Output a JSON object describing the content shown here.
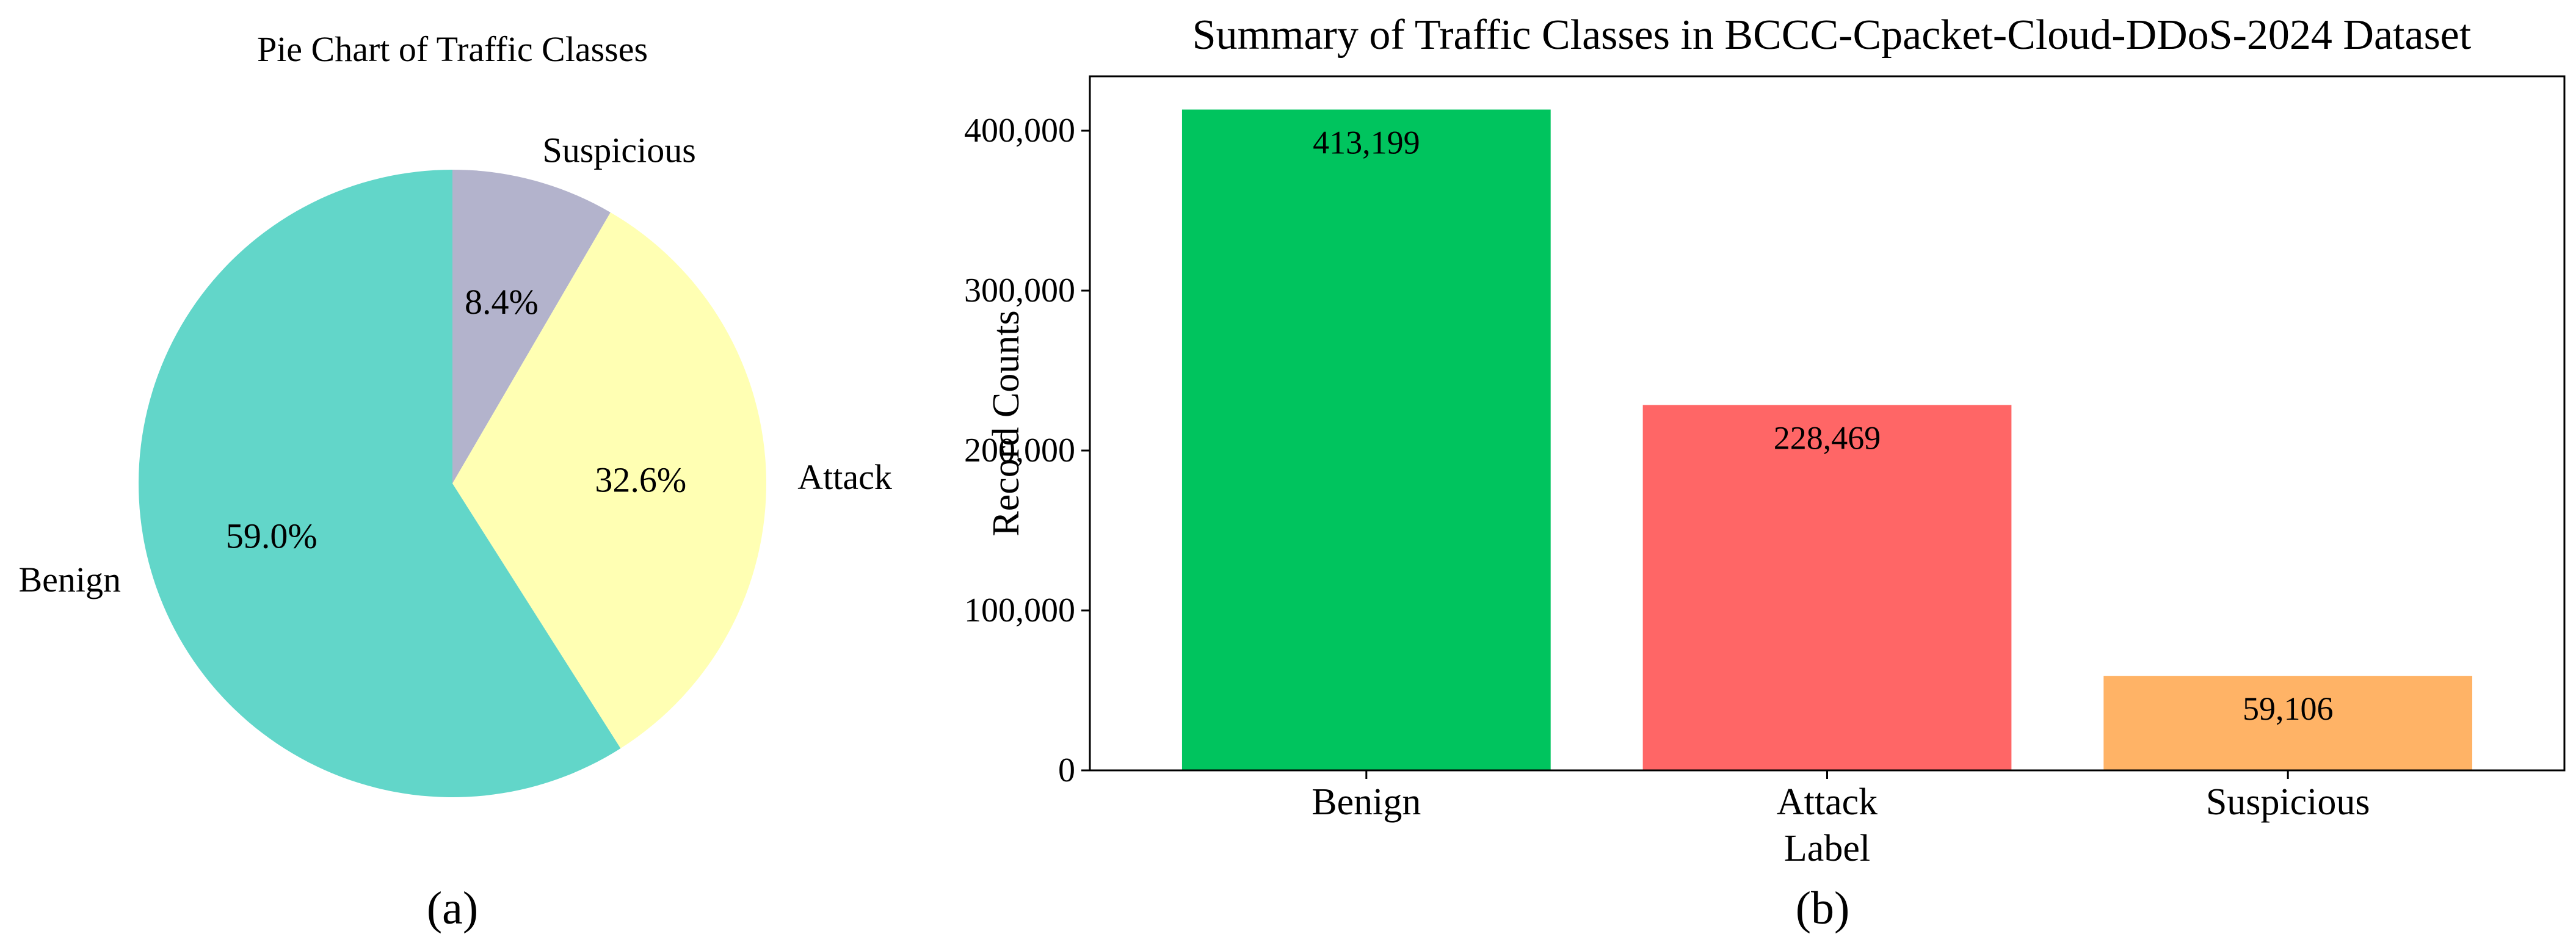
{
  "chart_data": [
    {
      "type": "pie",
      "title": "Pie Chart of Traffic Classes",
      "panel_label": "(a)",
      "start_angle_deg": 90,
      "direction": "clockwise",
      "slices": [
        {
          "label": "Suspicious",
          "value": 8.4,
          "pct_text": "8.4%",
          "color": "#b3b3cc"
        },
        {
          "label": "Attack",
          "value": 32.6,
          "pct_text": "32.6%",
          "color": "#ffffb3"
        },
        {
          "label": "Benign",
          "value": 59.0,
          "pct_text": "59.0%",
          "color": "#62d6c9"
        }
      ]
    },
    {
      "type": "bar",
      "title": "Summary of Traffic Classes in BCCC-Cpacket-Cloud-DDoS-2024 Dataset",
      "panel_label": "(b)",
      "xlabel": "Label",
      "ylabel": "Record Counts",
      "categories": [
        "Benign",
        "Attack",
        "Suspicious"
      ],
      "values": [
        413199,
        228469,
        59106
      ],
      "value_labels": [
        "413,199",
        "228,469",
        "59,106"
      ],
      "colors": [
        "#00c45e",
        "#ff6666",
        "#ffb366"
      ],
      "ylim": [
        0,
        434000
      ],
      "yticks": [
        0,
        100000,
        200000,
        300000,
        400000
      ],
      "ytick_labels": [
        "0",
        "100,000",
        "200,000",
        "300,000",
        "400,000"
      ]
    }
  ]
}
